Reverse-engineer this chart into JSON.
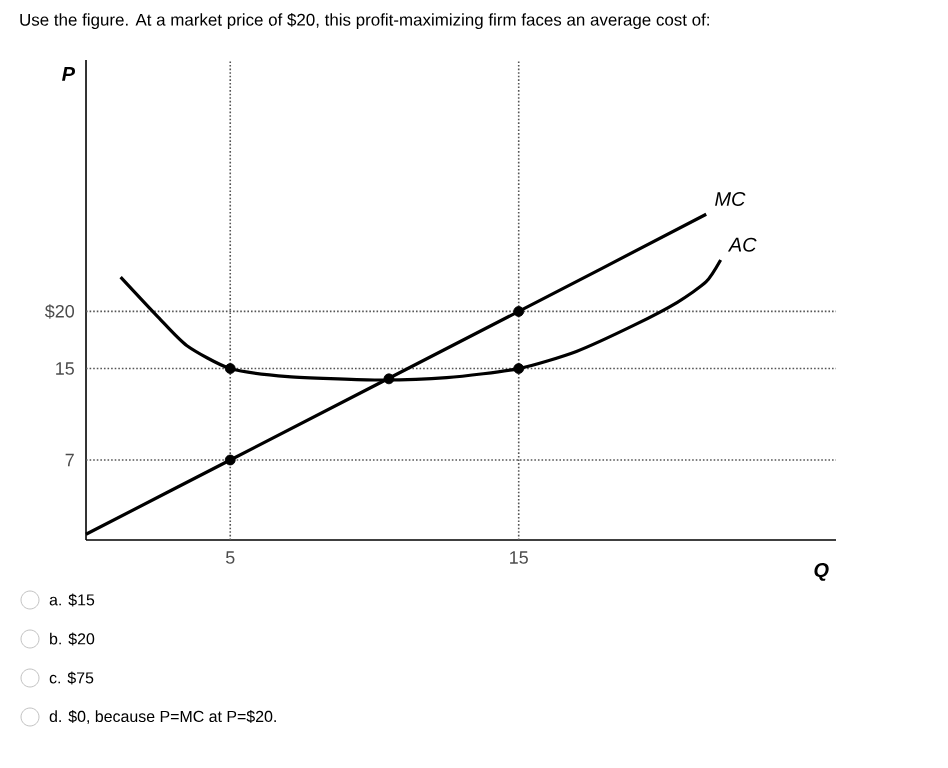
{
  "chart_data": {
    "type": "line",
    "title": "Use the figure. At a market price of $20, this profit-maximizing firm faces an average cost of:",
    "xlabel": "Q",
    "ylabel": "P",
    "xlim": [
      0,
      26
    ],
    "ylim": [
      0,
      42
    ],
    "xticks": [
      5,
      15
    ],
    "yticks": [
      7,
      15,
      {
        "value": 20,
        "label": "$20"
      }
    ],
    "line_style": "solid",
    "series": [
      {
        "name": "MC",
        "color": "#000000",
        "x": [
          0,
          5,
          15,
          21.5
        ],
        "values": [
          0.5,
          7,
          20,
          28.5
        ]
      },
      {
        "name": "AC",
        "color": "#000000",
        "x": [
          1.2,
          2.5,
          3.5,
          5,
          7,
          10,
          12.5,
          15,
          17,
          19,
          20.5,
          21.5,
          22
        ],
        "values": [
          23,
          19.5,
          17,
          15,
          14.3,
          14,
          14.2,
          15,
          16.5,
          18.8,
          20.8,
          22.6,
          24.5
        ]
      },
      {
        "type": "scatter",
        "color": "#000000",
        "marker": "circle",
        "x": [
          5,
          5,
          15,
          15,
          10.5
        ],
        "values": [
          15,
          7,
          20,
          15,
          14.1
        ]
      }
    ],
    "ref_lines": [
      {
        "axis": "y",
        "value": 20,
        "line_style": "dotted"
      },
      {
        "axis": "y",
        "value": 15,
        "line_style": "dotted"
      },
      {
        "axis": "y",
        "value": 7,
        "line_style": "dotted"
      },
      {
        "axis": "x",
        "value": 5,
        "line_style": "dotted"
      },
      {
        "axis": "x",
        "value": 15,
        "line_style": "dotted"
      }
    ],
    "annotations": [
      "a. $15",
      "b. $20",
      "c. $75",
      "d. $0, because P=MC at P=$20."
    ]
  }
}
